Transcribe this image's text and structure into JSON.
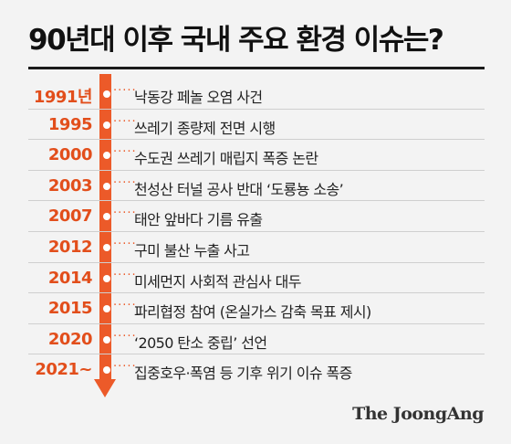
{
  "title": "90년대 이후 국내 주요 환경 이슈는?",
  "accent_color": "#ec5a29",
  "events": [
    {
      "year": "1991년",
      "description": "낙동강 페놀 오염 사건"
    },
    {
      "year": "1995",
      "description": "쓰레기 종량제 전면 시행"
    },
    {
      "year": "2000",
      "description": "수도권 쓰레기 매립지 폭증 논란"
    },
    {
      "year": "2003",
      "description": "천성산 터널 공사 반대 ‘도룡뇽 소송’"
    },
    {
      "year": "2007",
      "description": "태안 앞바다 기름 유출"
    },
    {
      "year": "2012",
      "description": "구미 불산 누출 사고"
    },
    {
      "year": "2014",
      "description": "미세먼지 사회적 관심사 대두"
    },
    {
      "year": "2015",
      "description": "파리협정 참여 (온실가스 감축 목표 제시)"
    },
    {
      "year": "2020",
      "description": "‘2050 탄소 중립’ 선언"
    },
    {
      "year": "2021~",
      "description": "집중호우·폭염 등 기후 위기 이슈 폭증"
    }
  ],
  "logo": "The JoongAng"
}
